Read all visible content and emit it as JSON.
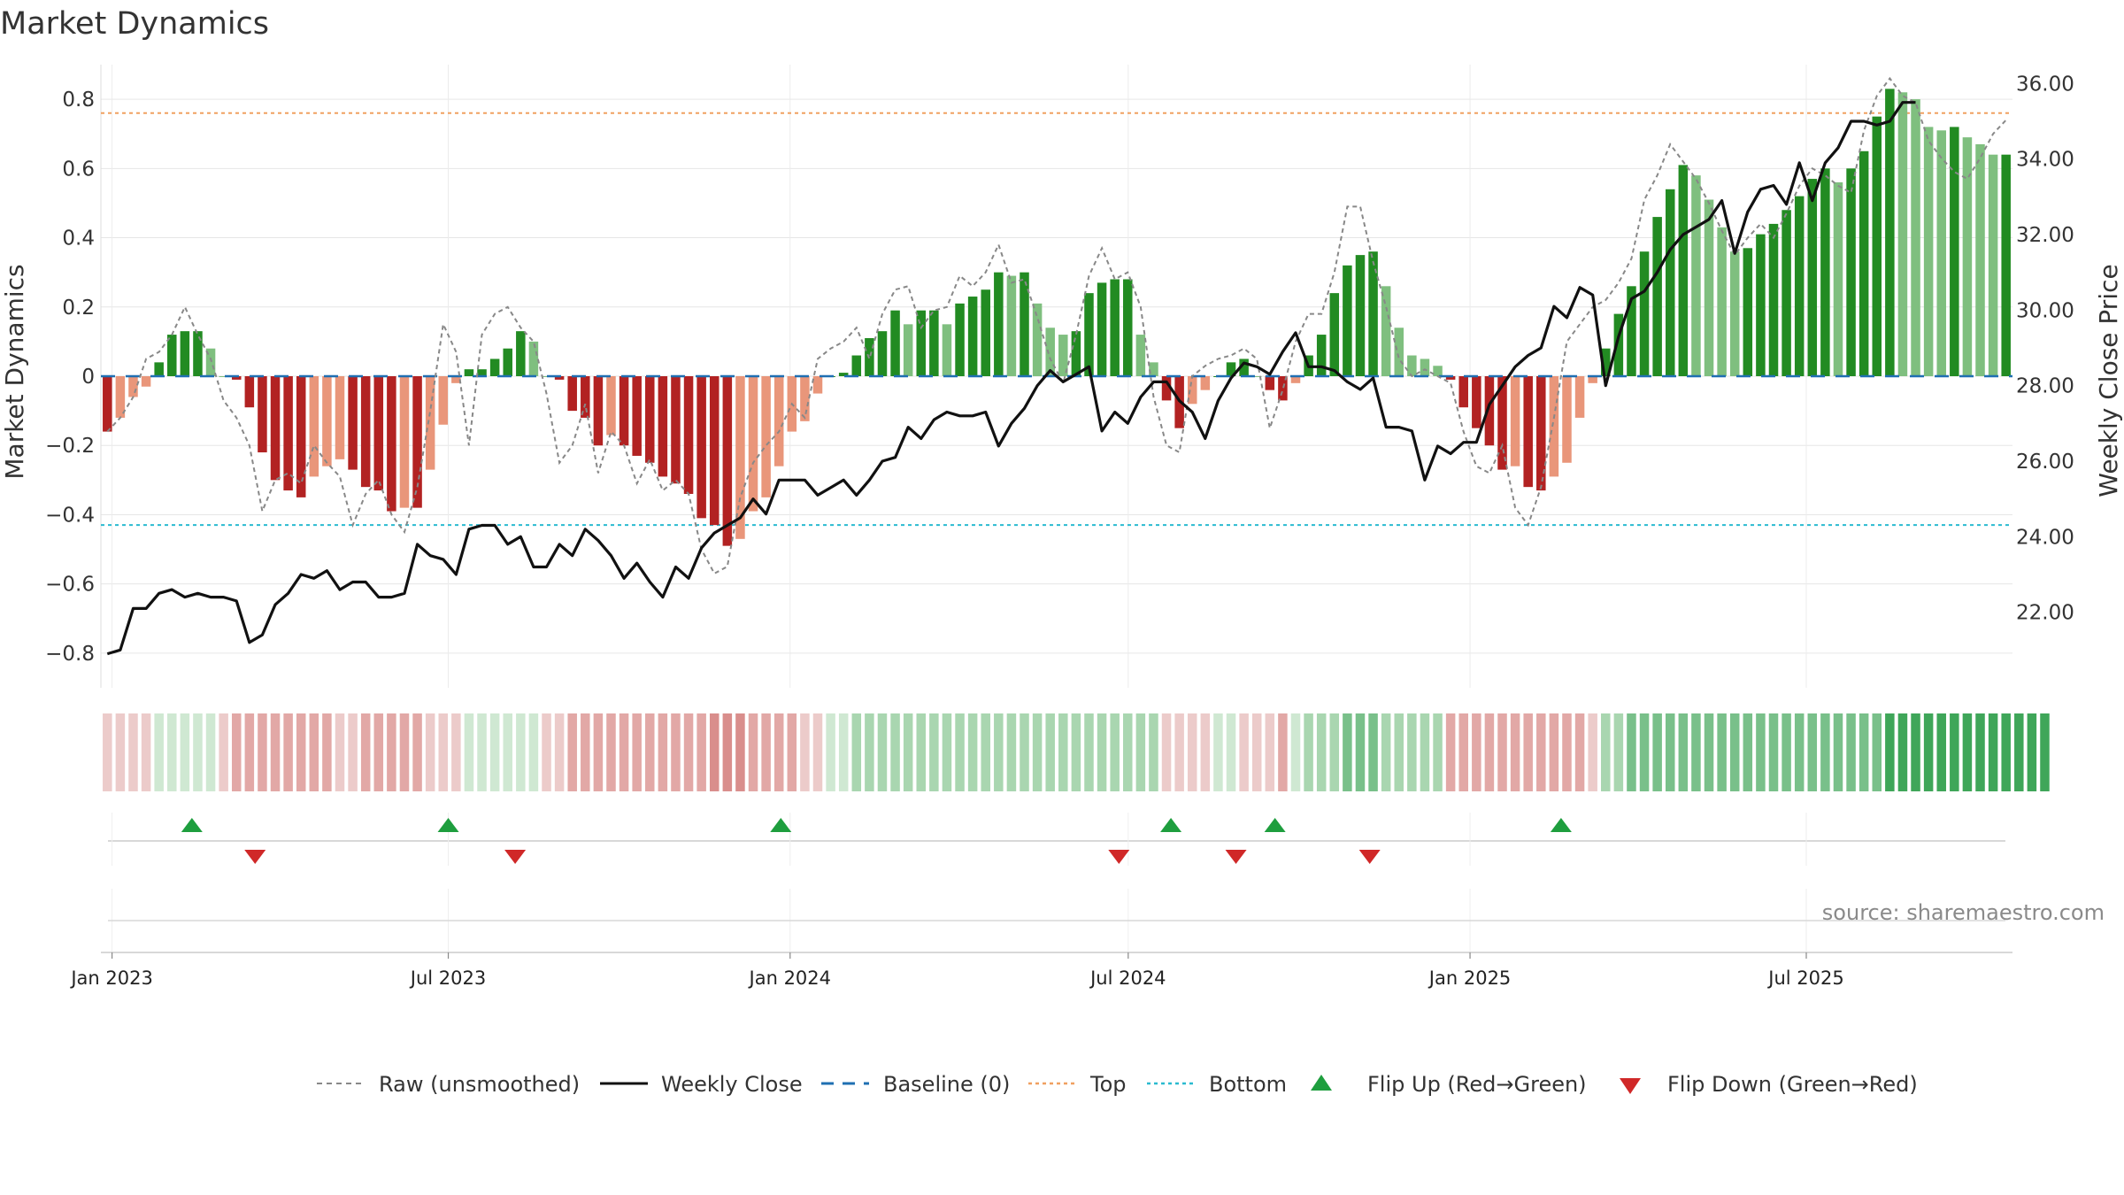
{
  "chart_data": {
    "type": "bar",
    "title": "Market Dynamics",
    "ylabel": "Market Dynamics",
    "y2label": "Weekly Close Price",
    "ylim": [
      -0.9,
      0.9
    ],
    "y2lim": [
      20.0,
      36.5
    ],
    "yticks": [
      "0.8",
      "0.6",
      "0.4",
      "0.2",
      "0",
      "−0.2",
      "−0.4",
      "−0.6",
      "−0.8"
    ],
    "y2ticks": [
      "36.00",
      "34.00",
      "32.00",
      "30.00",
      "28.00",
      "26.00",
      "24.00",
      "22.00"
    ],
    "x_start": "2022-12-26",
    "x_end": "2025-10-20",
    "x_tick_labels": [
      "Jan 2023",
      "Jul 2023",
      "Jan 2024",
      "Jul 2024",
      "Jan 2025",
      "Jul 2025"
    ],
    "x_tick_dates": [
      "2023-01-01",
      "2023-07-01",
      "2024-01-01",
      "2024-07-01",
      "2025-01-01",
      "2025-07-01"
    ],
    "top_threshold": 0.76,
    "bottom_threshold": -0.43,
    "baseline": 0,
    "grid": true,
    "legend_position": "bottom",
    "source_text": "source: sharemaestro.com",
    "series": [
      {
        "name": "Market Dynamics",
        "kind": "bar",
        "values": [
          -0.16,
          -0.12,
          -0.06,
          -0.03,
          0.04,
          0.12,
          0.13,
          0.13,
          0.08,
          0.0,
          -0.01,
          -0.09,
          -0.22,
          -0.3,
          -0.33,
          -0.35,
          -0.29,
          -0.26,
          -0.24,
          -0.27,
          -0.32,
          -0.33,
          -0.39,
          -0.38,
          -0.38,
          -0.27,
          -0.14,
          -0.02,
          0.02,
          0.02,
          0.05,
          0.08,
          0.13,
          0.1,
          0.0,
          -0.01,
          -0.1,
          -0.12,
          -0.2,
          -0.17,
          -0.2,
          -0.23,
          -0.25,
          -0.29,
          -0.31,
          -0.34,
          -0.41,
          -0.43,
          -0.49,
          -0.47,
          -0.39,
          -0.35,
          -0.26,
          -0.16,
          -0.13,
          -0.05,
          0.0,
          0.01,
          0.06,
          0.11,
          0.13,
          0.19,
          0.15,
          0.19,
          0.19,
          0.15,
          0.21,
          0.23,
          0.25,
          0.3,
          0.29,
          0.3,
          0.21,
          0.14,
          0.12,
          0.13,
          0.24,
          0.27,
          0.28,
          0.28,
          0.12,
          0.04,
          -0.07,
          -0.15,
          -0.08,
          -0.04,
          0.0,
          0.04,
          0.05,
          0.0,
          -0.04,
          -0.07,
          -0.02,
          0.06,
          0.12,
          0.24,
          0.32,
          0.35,
          0.36,
          0.26,
          0.14,
          0.06,
          0.05,
          0.03,
          -0.01,
          -0.09,
          -0.15,
          -0.2,
          -0.27,
          -0.26,
          -0.32,
          -0.33,
          -0.29,
          -0.25,
          -0.12,
          -0.02,
          0.08,
          0.18,
          0.26,
          0.36,
          0.46,
          0.54,
          0.61,
          0.58,
          0.51,
          0.43,
          0.36,
          0.37,
          0.41,
          0.44,
          0.48,
          0.52,
          0.57,
          0.6,
          0.56,
          0.6,
          0.65,
          0.75,
          0.83,
          0.82,
          0.8,
          0.72,
          0.71,
          0.72,
          0.69,
          0.67,
          0.64,
          0.64
        ]
      },
      {
        "name": "Raw (unsmoothed)",
        "kind": "line",
        "values": [
          -0.16,
          -0.12,
          -0.06,
          0.05,
          0.07,
          0.12,
          0.2,
          0.12,
          0.05,
          -0.07,
          -0.12,
          -0.2,
          -0.39,
          -0.3,
          -0.28,
          -0.31,
          -0.2,
          -0.25,
          -0.29,
          -0.43,
          -0.34,
          -0.3,
          -0.4,
          -0.45,
          -0.32,
          -0.1,
          0.15,
          0.07,
          -0.2,
          0.12,
          0.18,
          0.2,
          0.14,
          0.1,
          -0.05,
          -0.25,
          -0.2,
          -0.08,
          -0.28,
          -0.16,
          -0.2,
          -0.31,
          -0.24,
          -0.33,
          -0.3,
          -0.34,
          -0.5,
          -0.57,
          -0.55,
          -0.35,
          -0.25,
          -0.2,
          -0.16,
          -0.08,
          -0.12,
          0.05,
          0.08,
          0.1,
          0.14,
          0.05,
          0.18,
          0.25,
          0.26,
          0.14,
          0.19,
          0.2,
          0.29,
          0.26,
          0.3,
          0.38,
          0.27,
          0.28,
          0.17,
          0.05,
          -0.02,
          0.12,
          0.29,
          0.37,
          0.28,
          0.3,
          0.2,
          -0.06,
          -0.2,
          -0.22,
          0.0,
          0.03,
          0.05,
          0.06,
          0.08,
          0.05,
          -0.15,
          -0.04,
          0.1,
          0.18,
          0.18,
          0.3,
          0.49,
          0.49,
          0.33,
          0.2,
          0.05,
          0.0,
          0.02,
          0.0,
          -0.02,
          -0.16,
          -0.26,
          -0.28,
          -0.2,
          -0.38,
          -0.43,
          -0.32,
          -0.12,
          0.1,
          0.15,
          0.2,
          0.22,
          0.27,
          0.34,
          0.51,
          0.58,
          0.67,
          0.62,
          0.57,
          0.5,
          0.42,
          0.35,
          0.4,
          0.44,
          0.4,
          0.47,
          0.55,
          0.6,
          0.58,
          0.55,
          0.53,
          0.71,
          0.81,
          0.86,
          0.81,
          0.79,
          0.68,
          0.63,
          0.59,
          0.57,
          0.63,
          0.7,
          0.74
        ]
      },
      {
        "name": "Weekly Close",
        "kind": "line",
        "axis": "right",
        "values": [
          20.9,
          21.0,
          22.1,
          22.1,
          22.5,
          22.6,
          22.4,
          22.5,
          22.4,
          22.4,
          22.3,
          21.2,
          21.4,
          22.2,
          22.5,
          23.0,
          22.9,
          23.1,
          22.6,
          22.8,
          22.8,
          22.4,
          22.4,
          22.5,
          23.8,
          23.5,
          23.4,
          23.0,
          24.2,
          24.3,
          24.3,
          23.8,
          24.0,
          23.2,
          23.2,
          23.8,
          23.5,
          24.2,
          23.9,
          23.5,
          22.9,
          23.3,
          22.8,
          22.4,
          23.2,
          22.9,
          23.7,
          24.1,
          24.3,
          24.5,
          25.0,
          24.6,
          25.5,
          25.5,
          25.5,
          25.1,
          25.3,
          25.5,
          25.1,
          25.5,
          26.0,
          26.1,
          26.9,
          26.6,
          27.1,
          27.3,
          27.2,
          27.2,
          27.3,
          26.4,
          27.0,
          27.4,
          28.0,
          28.4,
          28.1,
          28.3,
          28.5,
          26.8,
          27.3,
          27.0,
          27.7,
          28.1,
          28.1,
          27.6,
          27.3,
          26.6,
          27.6,
          28.2,
          28.6,
          28.5,
          28.3,
          28.9,
          29.4,
          28.5,
          28.5,
          28.4,
          28.1,
          27.9,
          28.2,
          26.9,
          26.9,
          26.8,
          25.5,
          26.4,
          26.2,
          26.5,
          26.5,
          27.5,
          28.0,
          28.5,
          28.8,
          29.0,
          30.1,
          29.8,
          30.6,
          30.4,
          28.0,
          29.3,
          30.3,
          30.5,
          31.0,
          31.6,
          32.0,
          32.2,
          32.4,
          32.9,
          31.5,
          32.6,
          33.2,
          33.3,
          32.8,
          33.9,
          32.9,
          33.9,
          34.3,
          35.0,
          35.0,
          34.9,
          35.0,
          35.5,
          35.5
        ]
      }
    ],
    "regime_strip": [
      -2,
      -2,
      -2,
      -2,
      1,
      1,
      1,
      1,
      1,
      -2,
      -3,
      -3,
      -3,
      -3,
      -3,
      -3,
      -3,
      -3,
      -2,
      -2,
      -3,
      -3,
      -3,
      -3,
      -3,
      -2,
      -2,
      -2,
      1,
      1,
      1,
      1,
      1,
      1,
      -2,
      -2,
      -3,
      -3,
      -3,
      -3,
      -3,
      -3,
      -3,
      -3,
      -3,
      -3,
      -3,
      -4,
      -4,
      -4,
      -3,
      -3,
      -3,
      -3,
      -2,
      -2,
      1,
      1,
      2,
      2,
      2,
      2,
      2,
      2,
      2,
      2,
      2,
      2,
      2,
      2,
      2,
      2,
      2,
      2,
      2,
      2,
      2,
      2,
      2,
      2,
      2,
      2,
      -2,
      -2,
      -2,
      -2,
      1,
      1,
      -2,
      -2,
      -2,
      -3,
      1,
      2,
      2,
      2,
      3,
      3,
      3,
      2,
      2,
      2,
      2,
      2,
      -3,
      -3,
      -3,
      -3,
      -3,
      -3,
      -3,
      -3,
      -3,
      -3,
      -3,
      -2,
      2,
      2,
      3,
      3,
      3,
      3,
      3,
      3,
      3,
      3,
      3,
      3,
      3,
      3,
      3,
      3,
      3,
      3,
      3,
      3,
      3,
      3,
      4,
      4,
      4,
      4,
      4,
      4,
      4,
      4,
      4,
      4,
      4,
      4,
      4
    ],
    "flip_up_dates": [
      "2023-02-13",
      "2023-07-01",
      "2023-12-27",
      "2024-07-24",
      "2024-09-18",
      "2025-02-19"
    ],
    "flip_down_dates": [
      "2023-03-19",
      "2023-08-06",
      "2024-06-26",
      "2024-08-28",
      "2024-11-08"
    ]
  },
  "legend": {
    "raw": "Raw (unsmoothed)",
    "close": "Weekly Close",
    "baseline": "Baseline (0)",
    "top": "Top",
    "bottom": "Bottom",
    "flip_up": "Flip Up (Red→Green)",
    "flip_down": "Flip Down (Green→Red)"
  },
  "colors": {
    "strong_green": "#228B22",
    "light_green": "#7FBF7F",
    "strong_red": "#B22222",
    "light_red": "#E9967A",
    "raw_line": "#888888",
    "close_line": "#111111",
    "baseline": "#1F6FB2",
    "top": "#F0A060",
    "bottom": "#2BBBD0",
    "flip_up": "#1E9E3E",
    "flip_down": "#D02828"
  }
}
